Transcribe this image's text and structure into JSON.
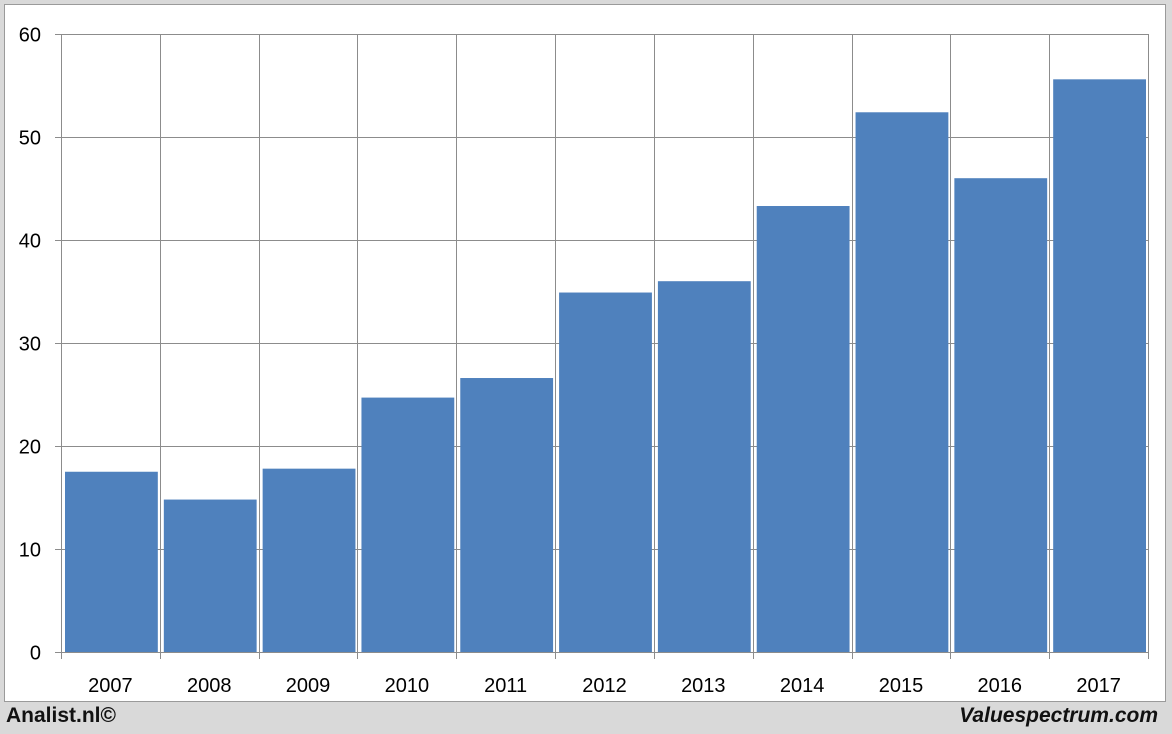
{
  "chart_data": {
    "type": "bar",
    "categories": [
      "2007",
      "2008",
      "2009",
      "2010",
      "2011",
      "2012",
      "2013",
      "2014",
      "2015",
      "2016",
      "2017"
    ],
    "values": [
      17.5,
      14.8,
      17.8,
      24.7,
      26.6,
      34.9,
      36.0,
      43.3,
      52.4,
      46.0,
      55.6
    ],
    "ylim": [
      0,
      60
    ],
    "yticks": [
      0,
      10,
      20,
      30,
      40,
      50,
      60
    ],
    "grid": true,
    "bar_color": "#4f81bd"
  },
  "footer": {
    "left": "Analist.nl©",
    "right": "Valuespectrum.com"
  }
}
